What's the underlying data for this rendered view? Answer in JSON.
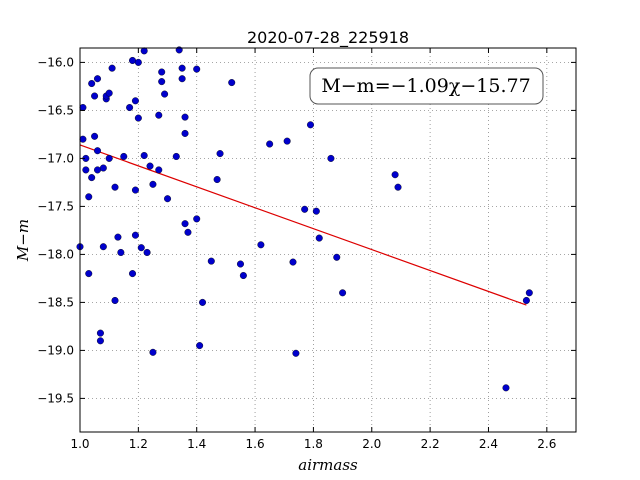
{
  "chart_data": {
    "type": "scatter",
    "title": "2020-07-28_225918",
    "xlabel": "airmass",
    "ylabel": "M−m",
    "xlim": [
      1.0,
      2.7
    ],
    "ylim": [
      -19.85,
      -15.85
    ],
    "xticks": [
      1.0,
      1.2,
      1.4,
      1.6,
      1.8,
      2.0,
      2.2,
      2.4,
      2.6
    ],
    "xtick_labels": [
      "1.0",
      "1.2",
      "1.4",
      "1.6",
      "1.8",
      "2.0",
      "2.2",
      "2.4",
      "2.6"
    ],
    "yticks": [
      -16.0,
      -16.5,
      -17.0,
      -17.5,
      -18.0,
      -18.5,
      -19.0,
      -19.5
    ],
    "ytick_labels": [
      "−16.0",
      "−16.5",
      "−17.0",
      "−17.5",
      "−18.0",
      "−18.5",
      "−19.0",
      "−19.5"
    ],
    "grid": true,
    "annotation": "M−m=−1.09χ−15.77",
    "colors": {
      "points": "#0000cc",
      "fit": "#dd0000"
    },
    "fit_line": {
      "slope": -1.09,
      "intercept": -15.77,
      "x_range": [
        1.0,
        2.53
      ]
    },
    "x": [
      1.0,
      1.01,
      1.01,
      1.02,
      1.02,
      1.03,
      1.03,
      1.04,
      1.04,
      1.05,
      1.05,
      1.06,
      1.06,
      1.06,
      1.07,
      1.07,
      1.08,
      1.08,
      1.09,
      1.09,
      1.1,
      1.1,
      1.11,
      1.12,
      1.12,
      1.13,
      1.14,
      1.15,
      1.17,
      1.18,
      1.18,
      1.19,
      1.19,
      1.19,
      1.2,
      1.2,
      1.21,
      1.22,
      1.22,
      1.23,
      1.24,
      1.25,
      1.25,
      1.27,
      1.27,
      1.28,
      1.28,
      1.29,
      1.3,
      1.33,
      1.34,
      1.35,
      1.35,
      1.36,
      1.36,
      1.36,
      1.37,
      1.4,
      1.4,
      1.41,
      1.42,
      1.45,
      1.47,
      1.48,
      1.52,
      1.55,
      1.56,
      1.62,
      1.65,
      1.71,
      1.73,
      1.74,
      1.77,
      1.79,
      1.81,
      1.82,
      1.86,
      1.88,
      1.9,
      2.08,
      2.09,
      2.46,
      2.53,
      2.54
    ],
    "y": [
      -17.92,
      -16.8,
      -16.47,
      -17.0,
      -17.12,
      -17.4,
      -18.2,
      -17.2,
      -16.22,
      -16.77,
      -16.35,
      -16.92,
      -17.12,
      -16.17,
      -18.82,
      -18.9,
      -17.92,
      -17.1,
      -16.38,
      -16.35,
      -17.0,
      -16.32,
      -16.06,
      -17.3,
      -18.48,
      -17.82,
      -17.98,
      -16.98,
      -16.47,
      -18.2,
      -15.98,
      -17.8,
      -16.4,
      -17.33,
      -16.0,
      -16.58,
      -17.93,
      -15.88,
      -16.97,
      -17.98,
      -17.08,
      -17.27,
      -19.02,
      -16.55,
      -17.12,
      -16.1,
      -16.2,
      -16.33,
      -17.42,
      -16.98,
      -15.87,
      -16.06,
      -16.17,
      -16.57,
      -16.74,
      -17.68,
      -17.77,
      -16.07,
      -17.63,
      -18.95,
      -18.5,
      -18.07,
      -17.22,
      -16.95,
      -16.21,
      -18.1,
      -18.22,
      -17.9,
      -16.85,
      -16.82,
      -18.08,
      -19.03,
      -17.53,
      -16.65,
      -17.55,
      -17.83,
      -17.0,
      -18.03,
      -18.4,
      -17.17,
      -17.3,
      -19.39,
      -18.48,
      -18.4
    ]
  }
}
